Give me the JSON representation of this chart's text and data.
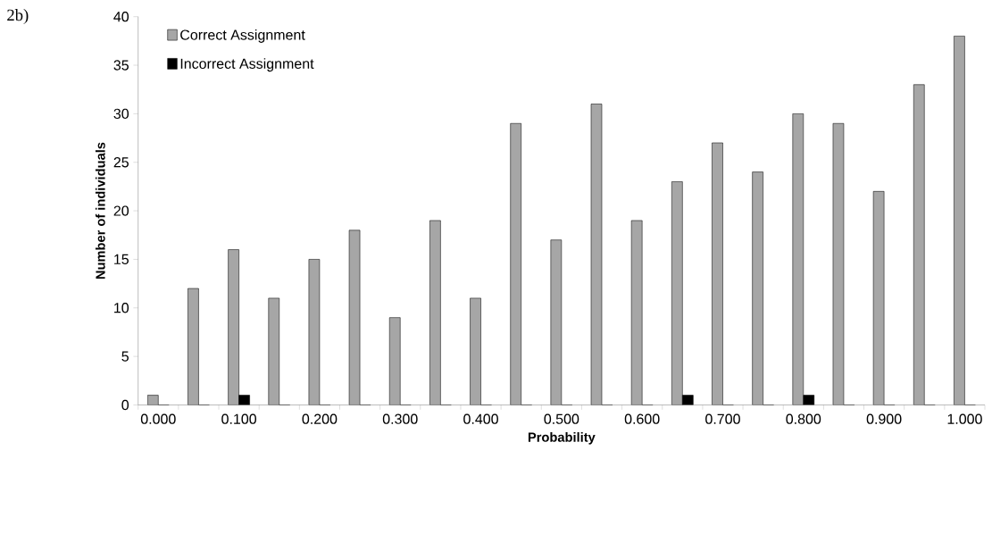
{
  "chart_data": {
    "type": "bar",
    "xlabel": "Probability",
    "ylabel": "Number of individuals",
    "categories": [
      "0.000",
      null,
      "0.100",
      null,
      "0.200",
      null,
      "0.300",
      null,
      "0.400",
      null,
      "0.500",
      null,
      "0.600",
      null,
      "0.700",
      null,
      "0.800",
      null,
      "0.900",
      null,
      "1.000"
    ],
    "series": [
      {
        "name": "Correct Assignment",
        "color": "#a6a6a6",
        "values": [
          1,
          12,
          16,
          11,
          15,
          18,
          9,
          19,
          11,
          29,
          17,
          31,
          19,
          23,
          27,
          24,
          30,
          29,
          22,
          33,
          38
        ]
      },
      {
        "name": "Incorrect Assignment",
        "color": "#000000",
        "values": [
          0,
          0,
          1,
          0,
          0,
          0,
          0,
          0,
          0,
          0,
          0,
          0,
          0,
          1,
          0,
          0,
          1,
          0,
          0,
          0,
          0
        ]
      }
    ],
    "ylim": [
      0,
      40
    ],
    "yticks": [
      0,
      5,
      10,
      15,
      20,
      25,
      30,
      35,
      40
    ],
    "legend": "top left",
    "grid": false,
    "annotations": [
      "2b)"
    ]
  }
}
